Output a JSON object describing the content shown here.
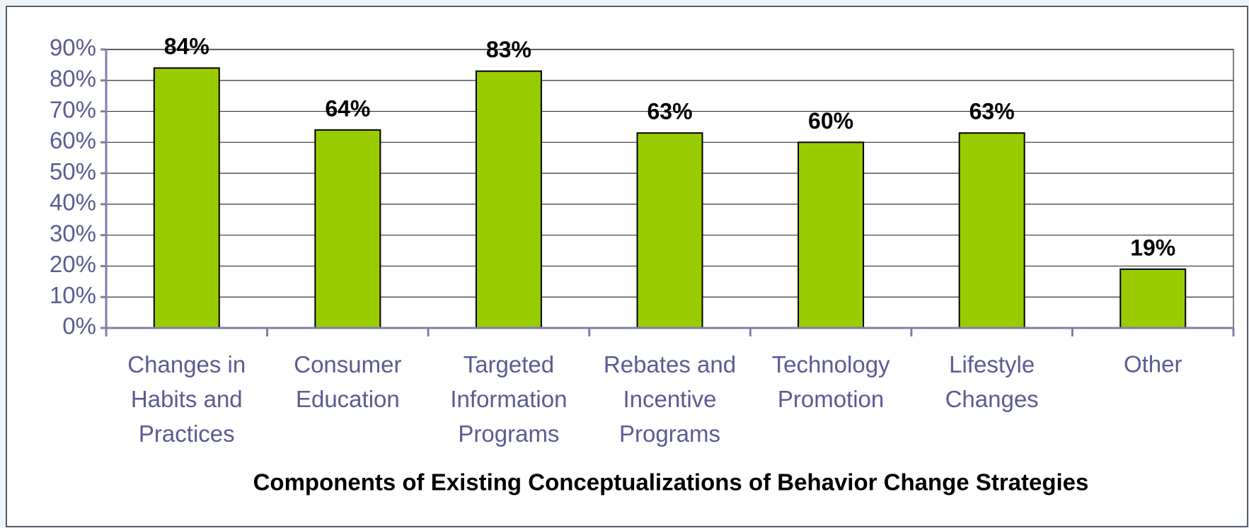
{
  "chart_data": {
    "type": "bar",
    "x_label": "Components of Existing Conceptualizations of Behavior Change Strategies",
    "categories": [
      "Changes in\nHabits and\nPractices",
      "Consumer\nEducation",
      "Targeted\nInformation\nPrograms",
      "Rebates and\nIncentive\nPrograms",
      "Technology\nPromotion",
      "Lifestyle\nChanges",
      "Other"
    ],
    "values": [
      84,
      64,
      83,
      63,
      60,
      63,
      19
    ],
    "value_labels": [
      "84%",
      "64%",
      "83%",
      "63%",
      "60%",
      "63%",
      "19%"
    ],
    "color": "#99cc00",
    "ylim": [
      0,
      90
    ],
    "yticks": [
      {
        "value": 0,
        "label": "0%"
      },
      {
        "value": 10,
        "label": "10%"
      },
      {
        "value": 20,
        "label": "20%"
      },
      {
        "value": 30,
        "label": "30%"
      },
      {
        "value": 40,
        "label": "40%"
      },
      {
        "value": 50,
        "label": "50%"
      },
      {
        "value": 60,
        "label": "60%"
      },
      {
        "value": 70,
        "label": "70%"
      },
      {
        "value": 80,
        "label": "80%"
      },
      {
        "value": 90,
        "label": "90%"
      }
    ],
    "grid": true
  }
}
